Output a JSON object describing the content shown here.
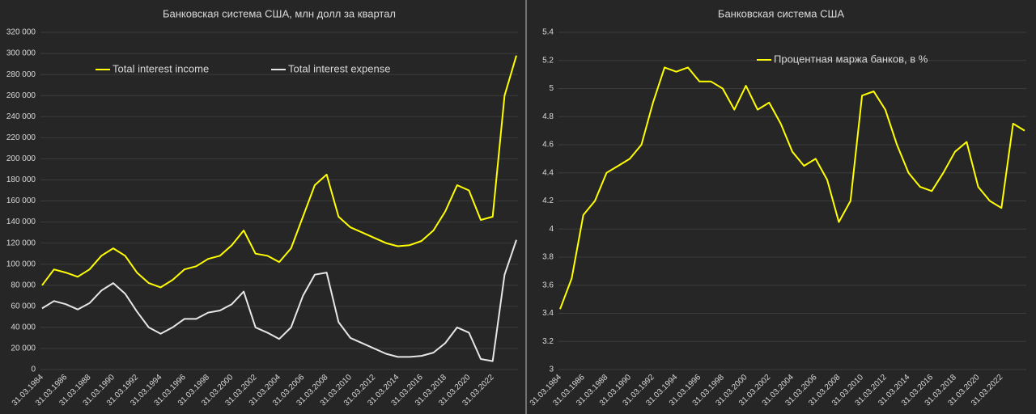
{
  "chart_data": [
    {
      "type": "line",
      "title": "Банковская система США, млн долл за квартал",
      "categories": [
        "31.03.1984",
        null,
        "31.03.1986",
        null,
        "31.03.1988",
        null,
        "31.03.1990",
        null,
        "31.03.1992",
        null,
        "31.03.1994",
        null,
        "31.03.1996",
        null,
        "31.03.1998",
        null,
        "31.03.2000",
        null,
        "31.03.2002",
        null,
        "31.03.2004",
        null,
        "31.03.2006",
        null,
        "31.03.2008",
        null,
        "31.03.2010",
        null,
        "31.03.2012",
        null,
        "31.03.2014",
        null,
        "31.03.2016",
        null,
        "31.03.2018",
        null,
        "31.03.2020",
        null,
        "31.03.2022",
        null,
        null
      ],
      "series": [
        {
          "name": "Total interest income",
          "color": "#ffff00",
          "values": [
            80000,
            95000,
            92000,
            88000,
            95000,
            108000,
            115000,
            108000,
            92000,
            82000,
            78000,
            85000,
            95000,
            98000,
            105000,
            108000,
            118000,
            132000,
            110000,
            108000,
            102000,
            115000,
            145000,
            175000,
            185000,
            145000,
            135000,
            130000,
            125000,
            120000,
            117000,
            118000,
            122000,
            132000,
            150000,
            175000,
            170000,
            142000,
            145000,
            260000,
            298000
          ]
        },
        {
          "name": "Total interest expense",
          "color": "#e6e6e6",
          "values": [
            58000,
            65000,
            62000,
            57000,
            63000,
            75000,
            82000,
            72000,
            55000,
            40000,
            34000,
            40000,
            48000,
            48000,
            54000,
            56000,
            62000,
            74000,
            40000,
            35000,
            29000,
            40000,
            70000,
            90000,
            92000,
            45000,
            30000,
            25000,
            20000,
            15000,
            12000,
            12000,
            13000,
            16000,
            25000,
            40000,
            35000,
            10000,
            8000,
            90000,
            123000
          ]
        }
      ],
      "ylim": [
        0,
        320000
      ],
      "yticks": [
        0,
        {
          "value": 20000,
          "label": "20 000"
        },
        {
          "value": 40000,
          "label": "40 000"
        },
        {
          "value": 60000,
          "label": "60 000"
        },
        {
          "value": 80000,
          "label": "80 000"
        },
        {
          "value": 100000,
          "label": "100 000"
        },
        {
          "value": 120000,
          "label": "120 000"
        },
        {
          "value": 140000,
          "label": "140 000"
        },
        {
          "value": 160000,
          "label": "160 000"
        },
        {
          "value": 180000,
          "label": "180 000"
        },
        {
          "value": 200000,
          "label": "200 000"
        },
        {
          "value": 220000,
          "label": "220 000"
        },
        {
          "value": 240000,
          "label": "240 000"
        },
        {
          "value": 260000,
          "label": "260 000"
        },
        {
          "value": 280000,
          "label": "280 000"
        },
        {
          "value": 300000,
          "label": "300 000"
        },
        {
          "value": 320000,
          "label": "320 000"
        }
      ],
      "grid": true
    },
    {
      "type": "line",
      "title": "Банковская система США",
      "categories": [
        "31.03.1984",
        null,
        "31.03.1986",
        null,
        "31.03.1988",
        null,
        "31.03.1990",
        null,
        "31.03.1992",
        null,
        "31.03.1994",
        null,
        "31.03.1996",
        null,
        "31.03.1998",
        null,
        "31.03.2000",
        null,
        "31.03.2002",
        null,
        "31.03.2004",
        null,
        "31.03.2006",
        null,
        "31.03.2008",
        null,
        "31.03.2010",
        null,
        "31.03.2012",
        null,
        "31.03.2014",
        null,
        "31.03.2016",
        null,
        "31.03.2018",
        null,
        "31.03.2020",
        null,
        "31.03.2022",
        null,
        null
      ],
      "series": [
        {
          "name": "Процентная маржа банков, в %",
          "color": "#ffff00",
          "values": [
            3.43,
            3.65,
            4.1,
            4.2,
            4.4,
            4.45,
            4.5,
            4.6,
            4.9,
            5.15,
            5.12,
            5.15,
            5.05,
            5.05,
            5.0,
            4.85,
            5.02,
            4.85,
            4.9,
            4.75,
            4.55,
            4.45,
            4.5,
            4.35,
            4.05,
            4.2,
            4.95,
            4.98,
            4.85,
            4.6,
            4.4,
            4.3,
            4.27,
            4.4,
            4.55,
            4.62,
            4.3,
            4.2,
            4.15,
            4.75,
            4.7
          ]
        }
      ],
      "ylim": [
        3,
        5.4
      ],
      "yticks": [
        3,
        3.2,
        3.4,
        3.6,
        3.8,
        4,
        4.2,
        4.4,
        4.6,
        4.8,
        5,
        5.2,
        5.4
      ],
      "grid": true
    }
  ]
}
